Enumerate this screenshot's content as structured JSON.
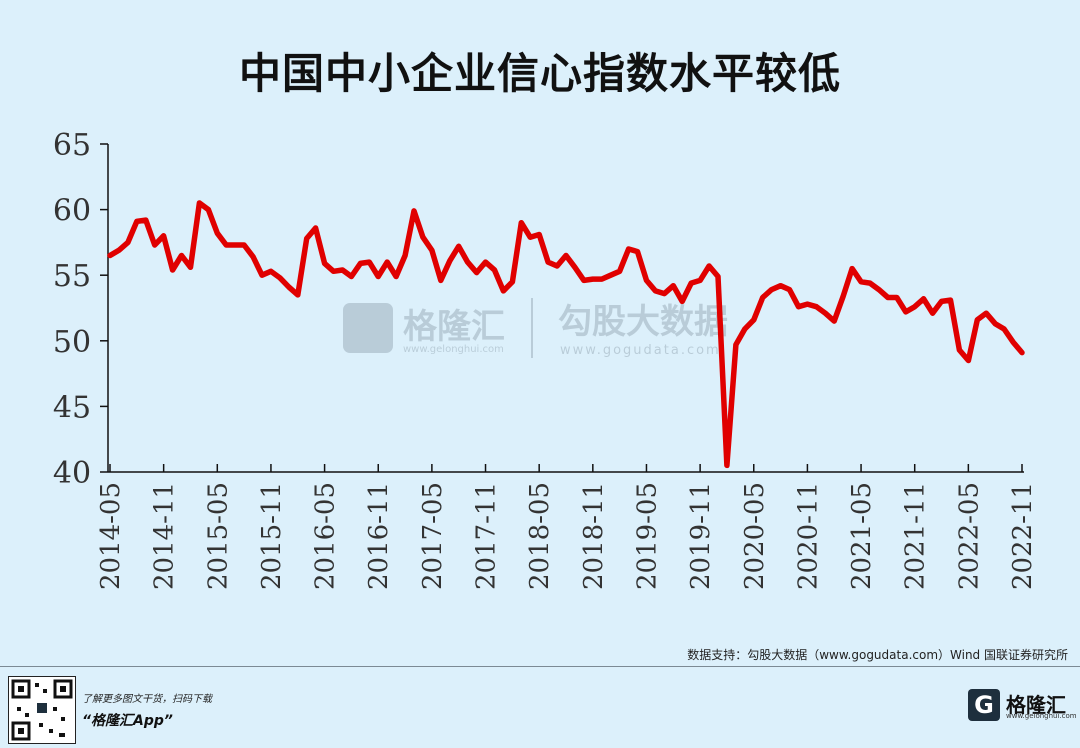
{
  "chart_data": {
    "type": "line",
    "title": "中国中小企业信心指数水平较低",
    "ylim": [
      40,
      65
    ],
    "yticks": [
      "40",
      "45",
      "50",
      "55",
      "60",
      "65"
    ],
    "xticks": [
      "2014-05",
      "2014-11",
      "2015-05",
      "2015-11",
      "2016-05",
      "2016-11",
      "2017-05",
      "2017-11",
      "2018-05",
      "2018-11",
      "2019-05",
      "2019-11",
      "2020-05",
      "2020-11",
      "2021-05",
      "2021-11",
      "2022-05",
      "2022-11"
    ],
    "x_start": "2014-05",
    "x_end": "2022-11",
    "grid": false,
    "series": [
      {
        "color": "#e00000",
        "values": [
          56.5,
          56.9,
          57.5,
          59.1,
          59.2,
          57.3,
          58.0,
          55.4,
          56.5,
          55.6,
          60.5,
          60.0,
          58.2,
          57.3,
          57.3,
          57.3,
          56.4,
          55.0,
          55.3,
          54.8,
          54.1,
          53.5,
          57.8,
          58.6,
          55.9,
          55.3,
          55.4,
          54.9,
          55.9,
          56.0,
          54.9,
          56.0,
          54.9,
          56.5,
          59.9,
          57.9,
          56.9,
          54.6,
          56.1,
          57.2,
          56.0,
          55.2,
          56.0,
          55.4,
          53.8,
          54.5,
          59.0,
          57.9,
          58.1,
          56.0,
          55.7,
          56.5,
          55.6,
          54.6,
          54.7,
          54.7,
          55.0,
          55.3,
          57.0,
          56.8,
          54.6,
          53.8,
          53.6,
          54.2,
          53.0,
          54.4,
          54.6,
          55.7,
          54.9,
          40.5,
          49.7,
          50.9,
          51.6,
          53.3,
          53.9,
          54.2,
          53.9,
          52.6,
          52.8,
          52.6,
          52.1,
          51.5,
          53.4,
          55.5,
          54.5,
          54.4,
          53.9,
          53.3,
          53.3,
          52.2,
          52.6,
          53.2,
          52.1,
          53.0,
          53.1,
          49.3,
          48.5,
          51.6,
          52.1,
          51.3,
          50.9,
          49.9,
          49.1
        ]
      }
    ],
    "source": "数据支持：勾股大数据（www.gogudata.com）Wind 国联证券研究所"
  },
  "watermark": {
    "brand_cn": "格隆汇",
    "brand_url": "www.gelonghui.com",
    "data_cn": "勾股大数据",
    "data_url": "www.gogudata.com"
  },
  "footer": {
    "promo_line1": "了解更多图文干货，扫码下载",
    "promo_line2": "“格隆汇App”",
    "brand_mark": "G",
    "brand_name": "格隆汇",
    "brand_url": "www.gelonghui.com"
  },
  "colors": {
    "background": "#dcf0fb",
    "line": "#e00000",
    "axis": "#111111"
  }
}
